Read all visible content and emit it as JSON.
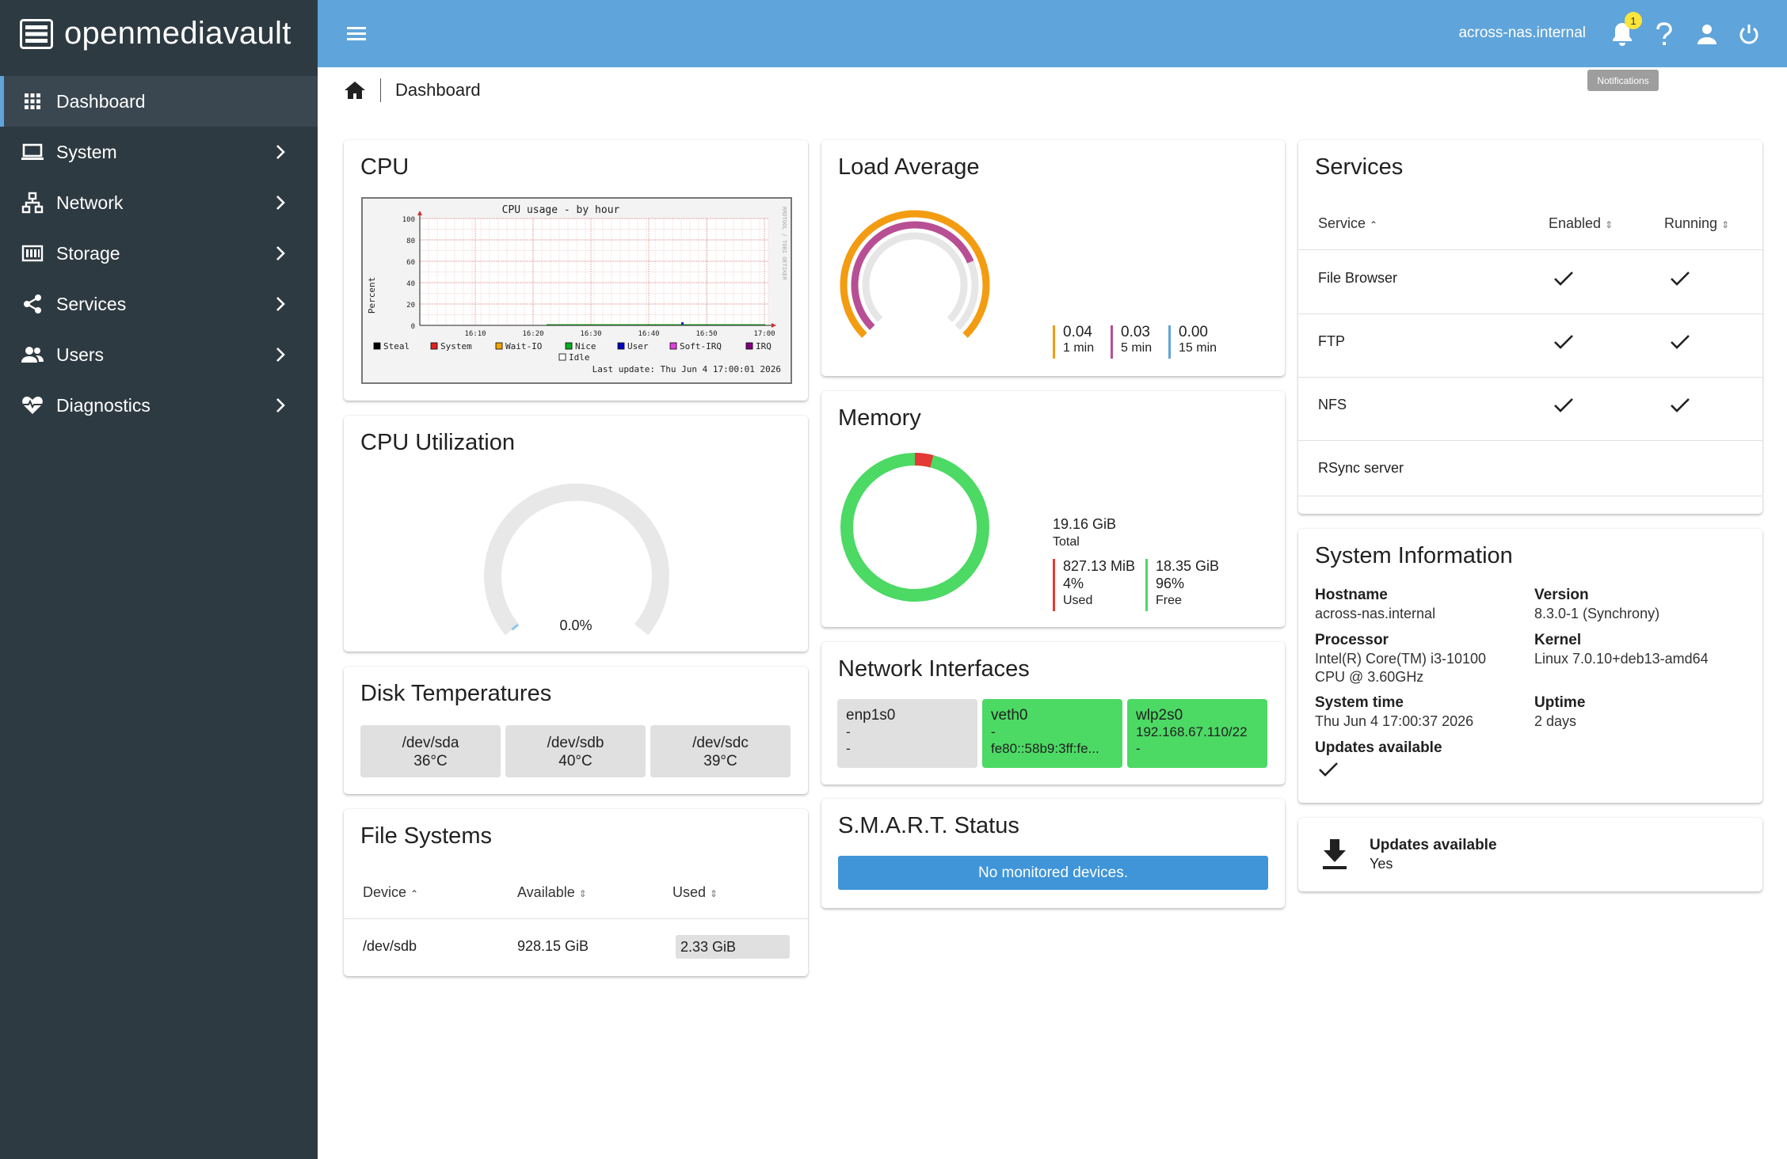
{
  "app": {
    "logo_text": "openmediavault",
    "hostname": "across-nas.internal",
    "notification_count": "1",
    "tooltip": "Notifications"
  },
  "sidebar": {
    "items": [
      {
        "label": "Dashboard",
        "icon": "grid-icon",
        "active": true
      },
      {
        "label": "System",
        "icon": "laptop-icon"
      },
      {
        "label": "Network",
        "icon": "network-icon"
      },
      {
        "label": "Storage",
        "icon": "storage-icon"
      },
      {
        "label": "Services",
        "icon": "share-icon"
      },
      {
        "label": "Users",
        "icon": "users-icon"
      },
      {
        "label": "Diagnostics",
        "icon": "heartbeat-icon"
      }
    ]
  },
  "breadcrumb": {
    "current": "Dashboard"
  },
  "cpu": {
    "title": "CPU",
    "graph": {
      "title": "CPU usage - by hour",
      "ylabel": "Percent",
      "side_label": "RRDTOOL / TOBI OETIKER",
      "yticks": [
        "100",
        "80",
        "60",
        "40",
        "20",
        "0"
      ],
      "xticks": [
        "16:10",
        "16:20",
        "16:30",
        "16:40",
        "16:50",
        "17:00"
      ],
      "legend": [
        "Steal",
        "System",
        "Wait-IO",
        "Nice",
        "User",
        "Soft-IRQ",
        "IRQ",
        "Idle"
      ],
      "last_update": "Last update: Thu Jun  4 17:00:01 2026"
    }
  },
  "load": {
    "title": "Load Average",
    "items": [
      {
        "value": "0.04",
        "label": "1 min",
        "color": "#f39c12",
        "fraction": 0.04
      },
      {
        "value": "0.03",
        "label": "5 min",
        "color": "#b84f94",
        "fraction": 0.03
      },
      {
        "value": "0.00",
        "label": "15 min",
        "color": "#5fa4da",
        "fraction": 0
      }
    ]
  },
  "services": {
    "title": "Services",
    "headers": {
      "service": "Service",
      "enabled": "Enabled",
      "running": "Running"
    },
    "rows": [
      {
        "name": "File Browser",
        "enabled": true,
        "running": true
      },
      {
        "name": "FTP",
        "enabled": true,
        "running": true
      },
      {
        "name": "NFS",
        "enabled": true,
        "running": true
      },
      {
        "name": "RSync server",
        "enabled": false,
        "running": false
      }
    ]
  },
  "cpu_util": {
    "title": "CPU Utilization",
    "value": "0.0%"
  },
  "memory": {
    "title": "Memory",
    "total": "19.16 GiB",
    "total_label": "Total",
    "used": "827.13 MiB",
    "used_pct": "4%",
    "used_label": "Used",
    "free": "18.35 GiB",
    "free_pct": "96%",
    "free_label": "Free",
    "used_color": "#e53935",
    "free_color": "#4cd964",
    "used_fraction": 0.04
  },
  "sysinfo": {
    "title": "System Information",
    "hostname_label": "Hostname",
    "hostname": "across-nas.internal",
    "version_label": "Version",
    "version": "8.3.0-1 (Synchrony)",
    "processor_label": "Processor",
    "processor1": "Intel(R) Core(TM) i3-10100",
    "processor2": "CPU @ 3.60GHz",
    "kernel_label": "Kernel",
    "kernel": "Linux 7.0.10+deb13-amd64",
    "time_label": "System time",
    "time": "Thu Jun 4 17:00:37 2026",
    "uptime_label": "Uptime",
    "uptime": "2 days",
    "updates_label": "Updates available"
  },
  "disks": {
    "title": "Disk Temperatures",
    "items": [
      {
        "dev": "/dev/sda",
        "temp": "36°C"
      },
      {
        "dev": "/dev/sdb",
        "temp": "40°C"
      },
      {
        "dev": "/dev/sdc",
        "temp": "39°C"
      }
    ]
  },
  "nics": {
    "title": "Network Interfaces",
    "items": [
      {
        "name": "enp1s0",
        "l1": "-",
        "l2": "-",
        "color": "#e0e0e0"
      },
      {
        "name": "veth0",
        "l1": "-",
        "l2": "fe80::58b9:3ff:fe...",
        "color": "#4cd964"
      },
      {
        "name": "wlp2s0",
        "l1": "192.168.67.110/22",
        "l2": "-",
        "color": "#4cd964"
      }
    ]
  },
  "updates_card": {
    "title": "Updates available",
    "value": "Yes"
  },
  "filesystems": {
    "title": "File Systems",
    "headers": {
      "device": "Device",
      "available": "Available",
      "used": "Used"
    },
    "rows": [
      {
        "device": "/dev/sdb",
        "available": "928.15 GiB",
        "used": "2.33 GiB",
        "used_fraction": 0.003
      }
    ]
  },
  "smart": {
    "title": "S.M.A.R.T. Status",
    "message": "No monitored devices."
  }
}
